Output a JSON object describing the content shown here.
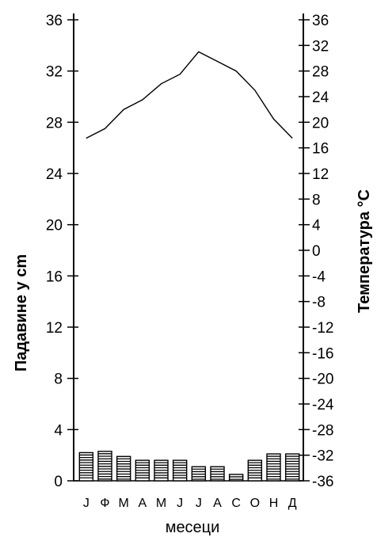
{
  "chart_data": {
    "type": "bar+line",
    "title": "",
    "xlabel": "месеци",
    "ylabel_left": "Падавине у cm",
    "ylabel_right": "Температура °C",
    "categories": [
      "J",
      "Ф",
      "М",
      "А",
      "М",
      "J",
      "J",
      "А",
      "С",
      "О",
      "Н",
      "Д"
    ],
    "ylim_left": [
      0,
      36
    ],
    "yticks_left": [
      0,
      4,
      8,
      12,
      16,
      20,
      24,
      28,
      32,
      36
    ],
    "ylim_right": [
      -36,
      36
    ],
    "yticks_right": [
      -36,
      -32,
      -28,
      -24,
      -20,
      -16,
      -12,
      -8,
      -4,
      0,
      4,
      8,
      12,
      16,
      20,
      24,
      28,
      32,
      36
    ],
    "series": [
      {
        "name": "Падавине у cm",
        "type": "bar",
        "axis": "left",
        "values": [
          2.2,
          2.3,
          1.9,
          1.6,
          1.6,
          1.6,
          1.1,
          1.1,
          0.5,
          1.6,
          2.1,
          2.1
        ]
      },
      {
        "name": "Температура °C",
        "type": "line",
        "axis": "right",
        "values": [
          17.5,
          19.0,
          22.0,
          23.5,
          26.0,
          27.5,
          31.0,
          29.5,
          28.0,
          25.0,
          20.5,
          17.5
        ]
      }
    ],
    "grid": false,
    "legend": "none",
    "colors": {
      "axis": "#000000",
      "line": "#000000",
      "bar_fill": "#ffffff",
      "bar_stripes": "#000000"
    }
  }
}
